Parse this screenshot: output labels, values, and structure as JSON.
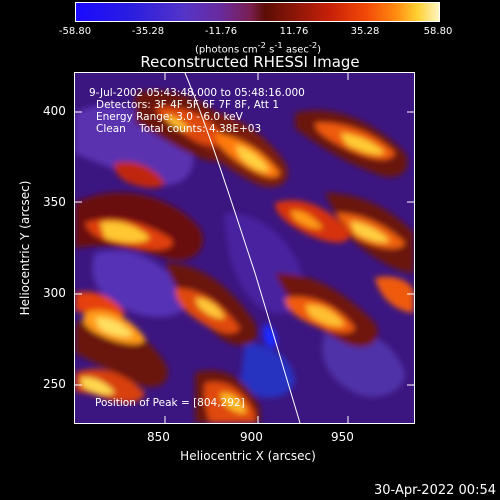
{
  "colorbar": {
    "ticks": [
      "-58.80",
      "-35.28",
      "-11.76",
      "11.76",
      "35.28",
      "58.80"
    ],
    "units_html": "(photons cm<sup>-2</sup> s<sup>-1</sup> asec<sup>-2</sup>)"
  },
  "plot": {
    "title": "Reconstructed RHESSI Image",
    "info": [
      "9-Jul-2002 05:43:48.000 to 05:48:16.000",
      "Detectors: 3F 4F 5F 6F 7F 8F, Att 1",
      "Energy Range: 3.0 - 6.0 keV",
      "Clean    Total counts: 4.38E+03"
    ],
    "peak_text": "Position of Peak = [804,292]",
    "x_label": "Heliocentric X (arcsec)",
    "y_label": "Heliocentric Y (arcsec)",
    "x_ticks": [
      "850",
      "900",
      "950"
    ],
    "y_ticks": [
      "250",
      "300",
      "350",
      "400"
    ]
  },
  "timestamp": "30-Apr-2022 00:54",
  "colors": {
    "background": "#000000",
    "foreground": "#ffffff",
    "limb_line": "#ffffff"
  }
}
